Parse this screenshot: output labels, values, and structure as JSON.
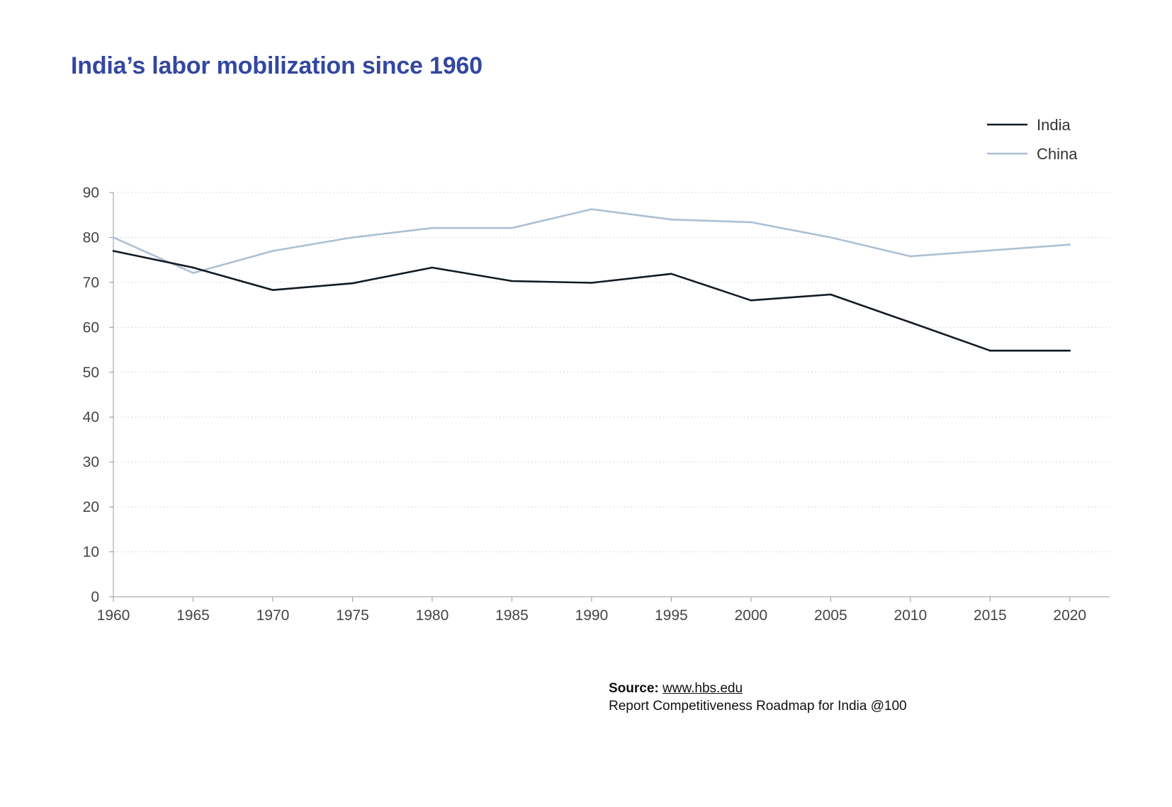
{
  "title": "India’s labor mobilization since 1960",
  "colors": {
    "title": "#3447a0",
    "india": "#111a24",
    "china": "#adc0d3",
    "grid": "#d9d9d9",
    "axis": "#999999"
  },
  "legend": {
    "position": "top-right",
    "items": [
      {
        "label": "India"
      },
      {
        "label": "China"
      }
    ]
  },
  "source": {
    "label": "Source:",
    "link": "www.hbs.edu",
    "note": "Report Competitiveness Roadmap for India @100"
  },
  "chart_data": {
    "type": "line",
    "title": "India’s labor mobilization since 1960",
    "xlabel": "",
    "ylabel": "",
    "xlim": [
      1960,
      2022.5
    ],
    "ylim": [
      0,
      90
    ],
    "xticks": [
      1960,
      1965,
      1970,
      1975,
      1980,
      1985,
      1990,
      1995,
      2000,
      2005,
      2010,
      2015,
      2020
    ],
    "yticks": [
      0,
      10,
      20,
      30,
      40,
      50,
      60,
      70,
      80,
      90
    ],
    "grid": "horizontal-dotted",
    "legend": "top-right",
    "series": [
      {
        "name": "India",
        "color": "#111a24",
        "x": [
          1960,
          1965,
          1970,
          1975,
          1980,
          1985,
          1990,
          1995,
          2000,
          2005,
          2010,
          2015,
          2020
        ],
        "y": [
          77.0,
          73.3,
          68.3,
          69.8,
          73.3,
          70.3,
          69.9,
          71.9,
          66.0,
          67.3,
          61.1,
          54.8,
          54.8
        ]
      },
      {
        "name": "China",
        "color": "#adc0d3",
        "x": [
          1960,
          1965,
          1970,
          1975,
          1980,
          1985,
          1990,
          1995,
          2000,
          2005,
          2010,
          2015,
          2020
        ],
        "y": [
          80.0,
          72.1,
          77.0,
          80.0,
          82.1,
          82.1,
          86.3,
          84.0,
          83.4,
          80.0,
          75.8,
          77.1,
          78.4
        ]
      }
    ]
  }
}
